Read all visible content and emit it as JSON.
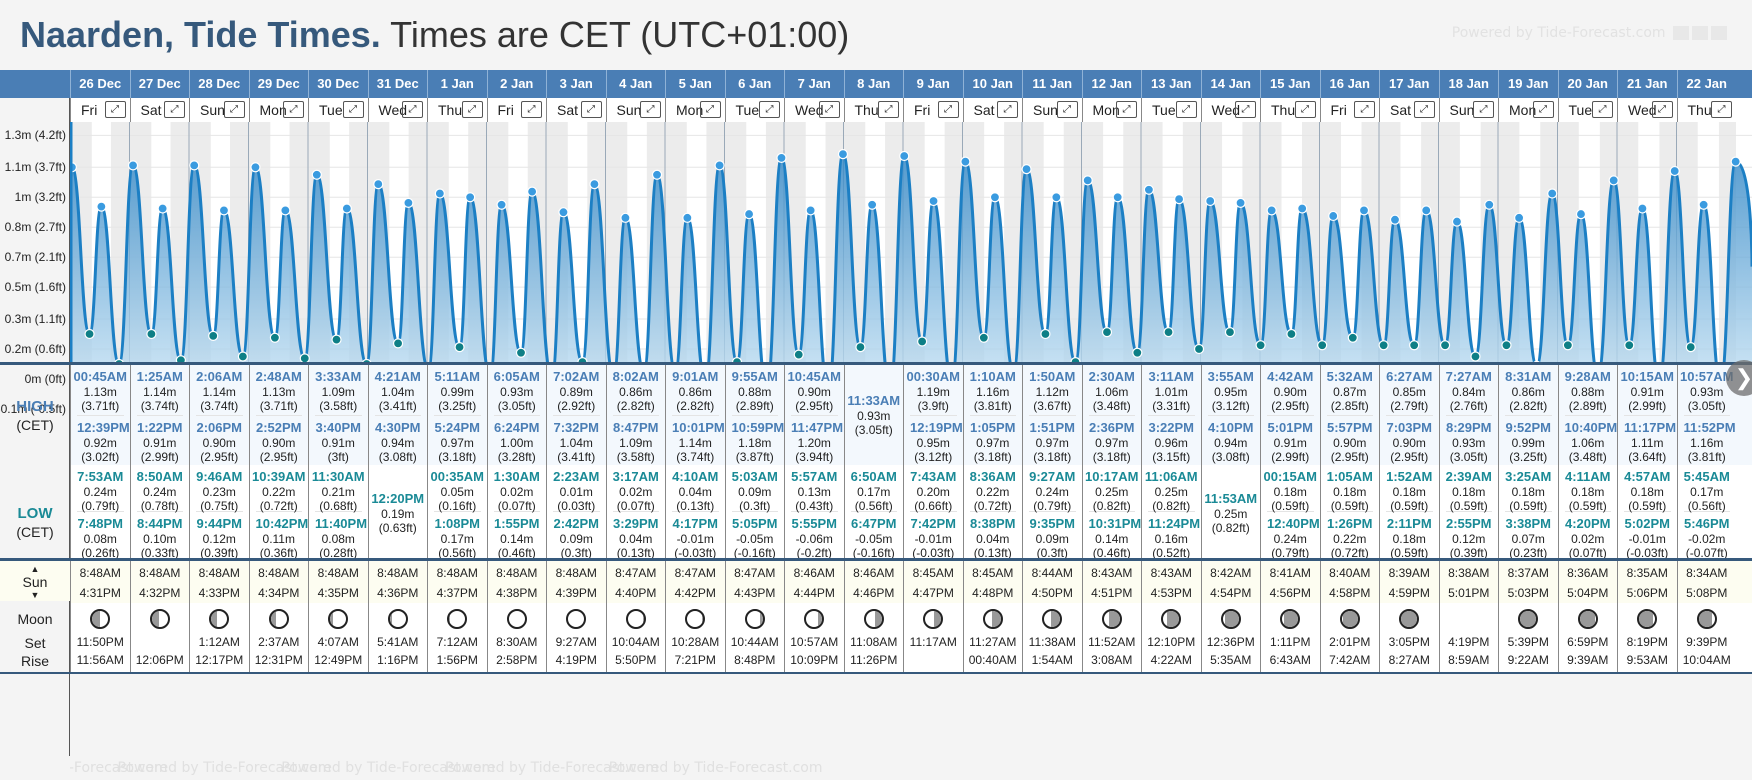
{
  "header": {
    "place": "Naarden, Tide Times.",
    "timezone": "Times are CET (UTC+01:00)",
    "powered_by": "Powered by Tide-Forecast.com"
  },
  "row_labels": {
    "high_main": "HIGH",
    "high_sub": "(CET)",
    "low_main": "LOW",
    "low_sub": "(CET)",
    "sun": "Sun",
    "moon": "Moon",
    "set": "Set",
    "rise": "Rise"
  },
  "chart_data": {
    "type": "area",
    "title": "Tide height",
    "ylabel": "Height",
    "y_ticks": [
      "1.3m (4.2ft)",
      "1.1m (3.7ft)",
      "1m (3.2ft)",
      "0.8m (2.7ft)",
      "0.7m (2.1ft)",
      "0.5m (1.6ft)",
      "0.3m (1.1ft)",
      "0.2m (0.6ft)",
      "0m (0ft)",
      "-0.1m (-0.5ft)"
    ],
    "y_tick_values": [
      1.3,
      1.13,
      0.97,
      0.81,
      0.65,
      0.49,
      0.32,
      0.16,
      0.0,
      -0.16
    ],
    "ylim": [
      -0.16,
      1.35
    ],
    "grid": true
  },
  "days": [
    {
      "date": "26 Dec",
      "day": "Fri",
      "high": [
        {
          "t": "00:45AM",
          "m": "1.13m",
          "ft": "(3.71ft)"
        },
        {
          "t": "12:39PM",
          "m": "0.92m",
          "ft": "(3.02ft)"
        }
      ],
      "low": [
        {
          "t": "7:53AM",
          "m": "0.24m",
          "ft": "(0.79ft)"
        },
        {
          "t": "7:48PM",
          "m": "0.08m",
          "ft": "(0.26ft)"
        }
      ],
      "sunrise": "8:48AM",
      "sunset": "4:31PM",
      "moon_illum": 0.5,
      "moon_waxing": false,
      "moonset": "11:50PM",
      "moonrise": "11:56AM"
    },
    {
      "date": "27 Dec",
      "day": "Sat",
      "high": [
        {
          "t": "1:25AM",
          "m": "1.14m",
          "ft": "(3.74ft)"
        },
        {
          "t": "1:22PM",
          "m": "0.91m",
          "ft": "(2.99ft)"
        }
      ],
      "low": [
        {
          "t": "8:50AM",
          "m": "0.24m",
          "ft": "(0.78ft)"
        },
        {
          "t": "8:44PM",
          "m": "0.10m",
          "ft": "(0.33ft)"
        }
      ],
      "sunrise": "8:48AM",
      "sunset": "4:32PM",
      "moon_illum": 0.45,
      "moon_waxing": false,
      "moonset": "",
      "moonrise": "12:06PM"
    },
    {
      "date": "28 Dec",
      "day": "Sun",
      "high": [
        {
          "t": "2:06AM",
          "m": "1.14m",
          "ft": "(3.74ft)"
        },
        {
          "t": "2:06PM",
          "m": "0.90m",
          "ft": "(2.95ft)"
        }
      ],
      "low": [
        {
          "t": "9:46AM",
          "m": "0.23m",
          "ft": "(0.75ft)"
        },
        {
          "t": "9:44PM",
          "m": "0.12m",
          "ft": "(0.39ft)"
        }
      ],
      "sunrise": "8:48AM",
      "sunset": "4:33PM",
      "moon_illum": 0.38,
      "moon_waxing": false,
      "moonset": "1:12AM",
      "moonrise": "12:17PM"
    },
    {
      "date": "29 Dec",
      "day": "Mon",
      "high": [
        {
          "t": "2:48AM",
          "m": "1.13m",
          "ft": "(3.71ft)"
        },
        {
          "t": "2:52PM",
          "m": "0.90m",
          "ft": "(2.95ft)"
        }
      ],
      "low": [
        {
          "t": "10:39AM",
          "m": "0.22m",
          "ft": "(0.72ft)"
        },
        {
          "t": "10:42PM",
          "m": "0.11m",
          "ft": "(0.36ft)"
        }
      ],
      "sunrise": "8:48AM",
      "sunset": "4:34PM",
      "moon_illum": 0.3,
      "moon_waxing": false,
      "moonset": "2:37AM",
      "moonrise": "12:31PM"
    },
    {
      "date": "30 Dec",
      "day": "Tue",
      "high": [
        {
          "t": "3:33AM",
          "m": "1.09m",
          "ft": "(3.58ft)"
        },
        {
          "t": "3:40PM",
          "m": "0.91m",
          "ft": "(3ft)"
        }
      ],
      "low": [
        {
          "t": "11:30AM",
          "m": "0.21m",
          "ft": "(0.68ft)"
        },
        {
          "t": "11:40PM",
          "m": "0.08m",
          "ft": "(0.28ft)"
        }
      ],
      "sunrise": "8:48AM",
      "sunset": "4:35PM",
      "moon_illum": 0.2,
      "moon_waxing": false,
      "moonset": "4:07AM",
      "moonrise": "12:49PM"
    },
    {
      "date": "31 Dec",
      "day": "Wed",
      "high": [
        {
          "t": "4:21AM",
          "m": "1.04m",
          "ft": "(3.41ft)"
        },
        {
          "t": "4:30PM",
          "m": "0.94m",
          "ft": "(3.08ft)"
        }
      ],
      "low": [
        {
          "t": "12:20PM",
          "m": "0.19m",
          "ft": "(0.63ft)"
        }
      ],
      "sunrise": "8:48AM",
      "sunset": "4:36PM",
      "moon_illum": 0.12,
      "moon_waxing": false,
      "moonset": "5:41AM",
      "moonrise": "1:16PM"
    },
    {
      "date": "1 Jan",
      "day": "Thu",
      "high": [
        {
          "t": "5:11AM",
          "m": "0.99m",
          "ft": "(3.25ft)"
        },
        {
          "t": "5:24PM",
          "m": "0.97m",
          "ft": "(3.18ft)"
        }
      ],
      "low": [
        {
          "t": "00:35AM",
          "m": "0.05m",
          "ft": "(0.16ft)"
        },
        {
          "t": "1:08PM",
          "m": "0.17m",
          "ft": "(0.56ft)"
        }
      ],
      "sunrise": "8:48AM",
      "sunset": "4:37PM",
      "moon_illum": 0.05,
      "moon_waxing": false,
      "moonset": "7:12AM",
      "moonrise": "1:56PM"
    },
    {
      "date": "2 Jan",
      "day": "Fri",
      "high": [
        {
          "t": "6:05AM",
          "m": "0.93m",
          "ft": "(3.05ft)"
        },
        {
          "t": "6:24PM",
          "m": "1.00m",
          "ft": "(3.28ft)"
        }
      ],
      "low": [
        {
          "t": "1:30AM",
          "m": "0.02m",
          "ft": "(0.07ft)"
        },
        {
          "t": "1:55PM",
          "m": "0.14m",
          "ft": "(0.46ft)"
        }
      ],
      "sunrise": "8:48AM",
      "sunset": "4:38PM",
      "moon_illum": 0.0,
      "moon_waxing": true,
      "moonset": "8:30AM",
      "moonrise": "2:58PM"
    },
    {
      "date": "3 Jan",
      "day": "Sat",
      "high": [
        {
          "t": "7:02AM",
          "m": "0.89m",
          "ft": "(2.92ft)"
        },
        {
          "t": "7:32PM",
          "m": "1.04m",
          "ft": "(3.41ft)"
        }
      ],
      "low": [
        {
          "t": "2:23AM",
          "m": "0.01m",
          "ft": "(0.03ft)"
        },
        {
          "t": "2:42PM",
          "m": "0.09m",
          "ft": "(0.3ft)"
        }
      ],
      "sunrise": "8:48AM",
      "sunset": "4:39PM",
      "moon_illum": 0.0,
      "moon_waxing": true,
      "moonset": "9:27AM",
      "moonrise": "4:19PM"
    },
    {
      "date": "4 Jan",
      "day": "Sun",
      "high": [
        {
          "t": "8:02AM",
          "m": "0.86m",
          "ft": "(2.82ft)"
        },
        {
          "t": "8:47PM",
          "m": "1.09m",
          "ft": "(3.58ft)"
        }
      ],
      "low": [
        {
          "t": "3:17AM",
          "m": "0.02m",
          "ft": "(0.07ft)"
        },
        {
          "t": "3:29PM",
          "m": "0.04m",
          "ft": "(0.13ft)"
        }
      ],
      "sunrise": "8:47AM",
      "sunset": "4:40PM",
      "moon_illum": 0.04,
      "moon_waxing": true,
      "moonset": "10:04AM",
      "moonrise": "5:50PM"
    },
    {
      "date": "5 Jan",
      "day": "Mon",
      "high": [
        {
          "t": "9:01AM",
          "m": "0.86m",
          "ft": "(2.82ft)"
        },
        {
          "t": "10:01PM",
          "m": "1.14m",
          "ft": "(3.74ft)"
        }
      ],
      "low": [
        {
          "t": "4:10AM",
          "m": "0.04m",
          "ft": "(0.13ft)"
        },
        {
          "t": "4:17PM",
          "m": "-0.01m",
          "ft": "(-0.03ft)"
        }
      ],
      "sunrise": "8:47AM",
      "sunset": "4:42PM",
      "moon_illum": 0.1,
      "moon_waxing": true,
      "moonset": "10:28AM",
      "moonrise": "7:21PM"
    },
    {
      "date": "6 Jan",
      "day": "Tue",
      "high": [
        {
          "t": "9:55AM",
          "m": "0.88m",
          "ft": "(2.89ft)"
        },
        {
          "t": "10:59PM",
          "m": "1.18m",
          "ft": "(3.87ft)"
        }
      ],
      "low": [
        {
          "t": "5:03AM",
          "m": "0.09m",
          "ft": "(0.3ft)"
        },
        {
          "t": "5:05PM",
          "m": "-0.05m",
          "ft": "(-0.16ft)"
        }
      ],
      "sunrise": "8:47AM",
      "sunset": "4:43PM",
      "moon_illum": 0.18,
      "moon_waxing": true,
      "moonset": "10:44AM",
      "moonrise": "8:48PM"
    },
    {
      "date": "7 Jan",
      "day": "Wed",
      "high": [
        {
          "t": "10:45AM",
          "m": "0.90m",
          "ft": "(2.95ft)"
        },
        {
          "t": "11:47PM",
          "m": "1.20m",
          "ft": "(3.94ft)"
        }
      ],
      "low": [
        {
          "t": "5:57AM",
          "m": "0.13m",
          "ft": "(0.43ft)"
        },
        {
          "t": "5:55PM",
          "m": "-0.06m",
          "ft": "(-0.2ft)"
        }
      ],
      "sunrise": "8:46AM",
      "sunset": "4:44PM",
      "moon_illum": 0.28,
      "moon_waxing": true,
      "moonset": "10:57AM",
      "moonrise": "10:09PM"
    },
    {
      "date": "8 Jan",
      "day": "Thu",
      "high": [
        {
          "t": "11:33AM",
          "m": "0.93m",
          "ft": "(3.05ft)"
        }
      ],
      "low": [
        {
          "t": "6:50AM",
          "m": "0.17m",
          "ft": "(0.56ft)"
        },
        {
          "t": "6:47PM",
          "m": "-0.05m",
          "ft": "(-0.16ft)"
        }
      ],
      "sunrise": "8:46AM",
      "sunset": "4:46PM",
      "moon_illum": 0.4,
      "moon_waxing": true,
      "moonset": "11:08AM",
      "moonrise": "11:26PM"
    },
    {
      "date": "9 Jan",
      "day": "Fri",
      "high": [
        {
          "t": "00:30AM",
          "m": "1.19m",
          "ft": "(3.9ft)"
        },
        {
          "t": "12:19PM",
          "m": "0.95m",
          "ft": "(3.12ft)"
        }
      ],
      "low": [
        {
          "t": "7:43AM",
          "m": "0.20m",
          "ft": "(0.66ft)"
        },
        {
          "t": "7:42PM",
          "m": "-0.01m",
          "ft": "(-0.03ft)"
        }
      ],
      "sunrise": "8:45AM",
      "sunset": "4:47PM",
      "moon_illum": 0.45,
      "moon_waxing": true,
      "moonset": "11:17AM",
      "moonrise": ""
    },
    {
      "date": "10 Jan",
      "day": "Sat",
      "high": [
        {
          "t": "1:10AM",
          "m": "1.16m",
          "ft": "(3.81ft)"
        },
        {
          "t": "1:05PM",
          "m": "0.97m",
          "ft": "(3.18ft)"
        }
      ],
      "low": [
        {
          "t": "8:36AM",
          "m": "0.22m",
          "ft": "(0.72ft)"
        },
        {
          "t": "8:38PM",
          "m": "0.04m",
          "ft": "(0.13ft)"
        }
      ],
      "sunrise": "8:45AM",
      "sunset": "4:48PM",
      "moon_illum": 0.52,
      "moon_waxing": true,
      "moonset": "11:27AM",
      "moonrise": "00:40AM"
    },
    {
      "date": "11 Jan",
      "day": "Sun",
      "high": [
        {
          "t": "1:50AM",
          "m": "1.12m",
          "ft": "(3.67ft)"
        },
        {
          "t": "1:51PM",
          "m": "0.97m",
          "ft": "(3.18ft)"
        }
      ],
      "low": [
        {
          "t": "9:27AM",
          "m": "0.24m",
          "ft": "(0.79ft)"
        },
        {
          "t": "9:35PM",
          "m": "0.09m",
          "ft": "(0.3ft)"
        }
      ],
      "sunrise": "8:44AM",
      "sunset": "4:50PM",
      "moon_illum": 0.6,
      "moon_waxing": true,
      "moonset": "11:38AM",
      "moonrise": "1:54AM"
    },
    {
      "date": "12 Jan",
      "day": "Mon",
      "high": [
        {
          "t": "2:30AM",
          "m": "1.06m",
          "ft": "(3.48ft)"
        },
        {
          "t": "2:36PM",
          "m": "0.97m",
          "ft": "(3.18ft)"
        }
      ],
      "low": [
        {
          "t": "10:17AM",
          "m": "0.25m",
          "ft": "(0.82ft)"
        },
        {
          "t": "10:31PM",
          "m": "0.14m",
          "ft": "(0.46ft)"
        }
      ],
      "sunrise": "8:43AM",
      "sunset": "4:51PM",
      "moon_illum": 0.68,
      "moon_waxing": true,
      "moonset": "11:52AM",
      "moonrise": "3:08AM"
    },
    {
      "date": "13 Jan",
      "day": "Tue",
      "high": [
        {
          "t": "3:11AM",
          "m": "1.01m",
          "ft": "(3.31ft)"
        },
        {
          "t": "3:22PM",
          "m": "0.96m",
          "ft": "(3.15ft)"
        }
      ],
      "low": [
        {
          "t": "11:06AM",
          "m": "0.25m",
          "ft": "(0.82ft)"
        },
        {
          "t": "11:24PM",
          "m": "0.16m",
          "ft": "(0.52ft)"
        }
      ],
      "sunrise": "8:43AM",
      "sunset": "4:53PM",
      "moon_illum": 0.76,
      "moon_waxing": true,
      "moonset": "12:10PM",
      "moonrise": "4:22AM"
    },
    {
      "date": "14 Jan",
      "day": "Wed",
      "high": [
        {
          "t": "3:55AM",
          "m": "0.95m",
          "ft": "(3.12ft)"
        },
        {
          "t": "4:10PM",
          "m": "0.94m",
          "ft": "(3.08ft)"
        }
      ],
      "low": [
        {
          "t": "11:53AM",
          "m": "0.25m",
          "ft": "(0.82ft)"
        }
      ],
      "sunrise": "8:42AM",
      "sunset": "4:54PM",
      "moon_illum": 0.84,
      "moon_waxing": true,
      "moonset": "12:36PM",
      "moonrise": "5:35AM"
    },
    {
      "date": "15 Jan",
      "day": "Thu",
      "high": [
        {
          "t": "4:42AM",
          "m": "0.90m",
          "ft": "(2.95ft)"
        },
        {
          "t": "5:01PM",
          "m": "0.91m",
          "ft": "(2.99ft)"
        }
      ],
      "low": [
        {
          "t": "00:15AM",
          "m": "0.18m",
          "ft": "(0.59ft)"
        },
        {
          "t": "12:40PM",
          "m": "0.24m",
          "ft": "(0.79ft)"
        }
      ],
      "sunrise": "8:41AM",
      "sunset": "4:56PM",
      "moon_illum": 0.9,
      "moon_waxing": true,
      "moonset": "1:11PM",
      "moonrise": "6:43AM"
    },
    {
      "date": "16 Jan",
      "day": "Fri",
      "high": [
        {
          "t": "5:32AM",
          "m": "0.87m",
          "ft": "(2.85ft)"
        },
        {
          "t": "5:57PM",
          "m": "0.90m",
          "ft": "(2.95ft)"
        }
      ],
      "low": [
        {
          "t": "1:05AM",
          "m": "0.18m",
          "ft": "(0.59ft)"
        },
        {
          "t": "1:26PM",
          "m": "0.22m",
          "ft": "(0.72ft)"
        }
      ],
      "sunrise": "8:40AM",
      "sunset": "4:58PM",
      "moon_illum": 0.95,
      "moon_waxing": true,
      "moonset": "2:01PM",
      "moonrise": "7:42AM"
    },
    {
      "date": "17 Jan",
      "day": "Sat",
      "high": [
        {
          "t": "6:27AM",
          "m": "0.85m",
          "ft": "(2.79ft)"
        },
        {
          "t": "7:03PM",
          "m": "0.90m",
          "ft": "(2.95ft)"
        }
      ],
      "low": [
        {
          "t": "1:52AM",
          "m": "0.18m",
          "ft": "(0.59ft)"
        },
        {
          "t": "2:11PM",
          "m": "0.18m",
          "ft": "(0.59ft)"
        }
      ],
      "sunrise": "8:39AM",
      "sunset": "4:59PM",
      "moon_illum": 0.99,
      "moon_waxing": true,
      "moonset": "3:05PM",
      "moonrise": "8:27AM"
    },
    {
      "date": "18 Jan",
      "day": "Sun",
      "high": [
        {
          "t": "7:27AM",
          "m": "0.84m",
          "ft": "(2.76ft)"
        },
        {
          "t": "8:29PM",
          "m": "0.93m",
          "ft": "(3.05ft)"
        }
      ],
      "low": [
        {
          "t": "2:39AM",
          "m": "0.18m",
          "ft": "(0.59ft)"
        },
        {
          "t": "2:55PM",
          "m": "0.12m",
          "ft": "(0.39ft)"
        }
      ],
      "sunrise": "8:38AM",
      "sunset": "5:01PM",
      "moon_illum": null,
      "moon_waxing": true,
      "moonset": "4:19PM",
      "moonrise": "8:59AM"
    },
    {
      "date": "19 Jan",
      "day": "Mon",
      "high": [
        {
          "t": "8:31AM",
          "m": "0.86m",
          "ft": "(2.82ft)"
        },
        {
          "t": "9:52PM",
          "m": "0.99m",
          "ft": "(3.25ft)"
        }
      ],
      "low": [
        {
          "t": "3:25AM",
          "m": "0.18m",
          "ft": "(0.59ft)"
        },
        {
          "t": "3:38PM",
          "m": "0.07m",
          "ft": "(0.23ft)"
        }
      ],
      "sunrise": "8:37AM",
      "sunset": "5:03PM",
      "moon_illum": 0.99,
      "moon_waxing": false,
      "moonset": "5:39PM",
      "moonrise": "9:22AM"
    },
    {
      "date": "20 Jan",
      "day": "Tue",
      "high": [
        {
          "t": "9:28AM",
          "m": "0.88m",
          "ft": "(2.89ft)"
        },
        {
          "t": "10:40PM",
          "m": "1.06m",
          "ft": "(3.48ft)"
        }
      ],
      "low": [
        {
          "t": "4:11AM",
          "m": "0.18m",
          "ft": "(0.59ft)"
        },
        {
          "t": "4:20PM",
          "m": "0.02m",
          "ft": "(0.07ft)"
        }
      ],
      "sunrise": "8:36AM",
      "sunset": "5:04PM",
      "moon_illum": 0.95,
      "moon_waxing": false,
      "moonset": "6:59PM",
      "moonrise": "9:39AM"
    },
    {
      "date": "21 Jan",
      "day": "Wed",
      "high": [
        {
          "t": "10:15AM",
          "m": "0.91m",
          "ft": "(2.99ft)"
        },
        {
          "t": "11:17PM",
          "m": "1.11m",
          "ft": "(3.64ft)"
        }
      ],
      "low": [
        {
          "t": "4:57AM",
          "m": "0.18m",
          "ft": "(0.59ft)"
        },
        {
          "t": "5:02PM",
          "m": "-0.01m",
          "ft": "(-0.03ft)"
        }
      ],
      "sunrise": "8:35AM",
      "sunset": "5:06PM",
      "moon_illum": 0.88,
      "moon_waxing": false,
      "moonset": "8:19PM",
      "moonrise": "9:53AM"
    },
    {
      "date": "22 Jan",
      "day": "Thu",
      "high": [
        {
          "t": "10:57AM",
          "m": "0.93m",
          "ft": "(3.05ft)"
        },
        {
          "t": "11:52PM",
          "m": "1.16m",
          "ft": "(3.81ft)"
        }
      ],
      "low": [
        {
          "t": "5:45AM",
          "m": "0.17m",
          "ft": "(0.56ft)"
        },
        {
          "t": "5:46PM",
          "m": "-0.02m",
          "ft": "(-0.07ft)"
        }
      ],
      "sunrise": "8:34AM",
      "sunset": "5:08PM",
      "moon_illum": 0.8,
      "moon_waxing": false,
      "moonset": "9:39PM",
      "moonrise": "10:04AM"
    }
  ],
  "icons": {
    "expand": "⤢",
    "next": "❯",
    "sun_up": "▲",
    "sun_down": "▼"
  },
  "colors": {
    "header_blue": "#4a7eb5",
    "title_blue": "#36597c",
    "high_time": "#4a7eb5",
    "low_time": "#1a8a96",
    "tide_line": "#1c7fc4",
    "low_dot": "#0e7f86",
    "high_dot": "#3a9be0"
  }
}
